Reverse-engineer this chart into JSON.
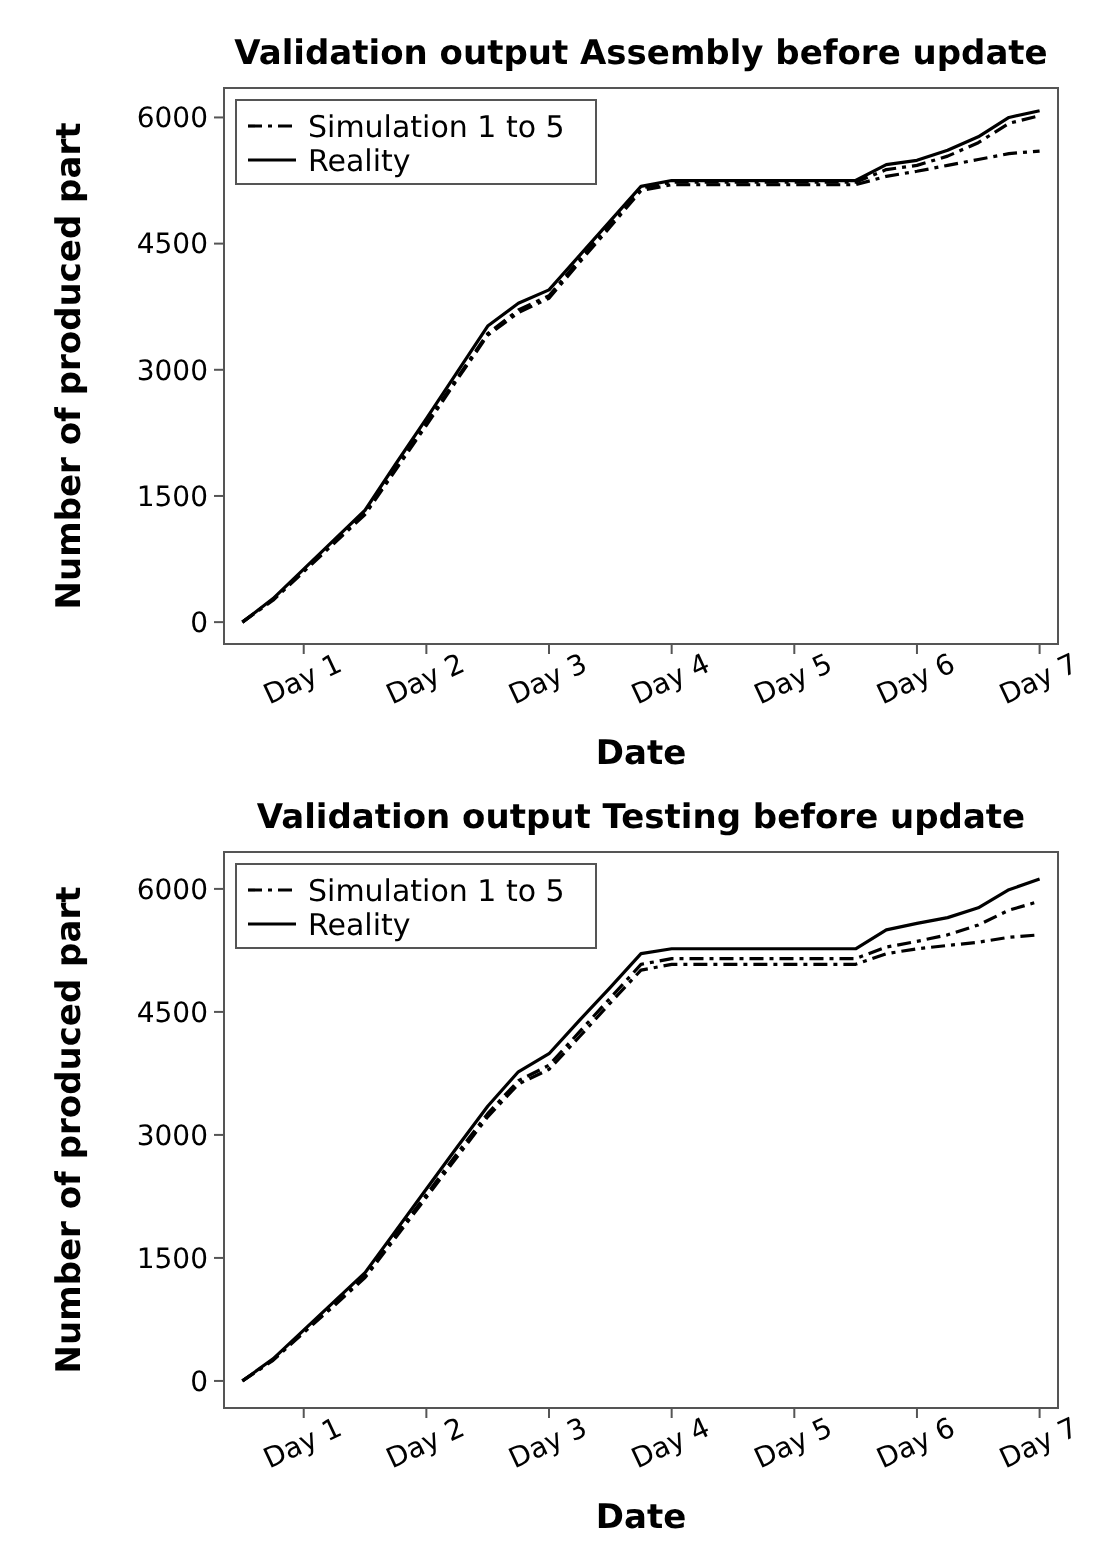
{
  "chart_data": [
    {
      "type": "line",
      "title": "Validation output Assembly before update",
      "xlabel": "Date",
      "ylabel": "Number of produced part",
      "categories": [
        null,
        null,
        "Day 1",
        null,
        null,
        null,
        "Day 2",
        null,
        null,
        null,
        "Day 3",
        null,
        null,
        null,
        "Day 4",
        null,
        null,
        null,
        "Day 5",
        null,
        null,
        null,
        "Day 6",
        null,
        null,
        null,
        "Day 7"
      ],
      "ylim": [
        -260,
        6350
      ],
      "yticks": [
        0,
        1500,
        3000,
        4500,
        6000
      ],
      "legend": "top left",
      "series": [
        {
          "name": "Simulation 1 to 5",
          "color": "#000000",
          "line_style": "dashdot",
          "values": [
            0,
            270,
            610,
            960,
            1300,
            1830,
            2370,
            2900,
            3430,
            3710,
            3880,
            4310,
            4730,
            5160,
            5230,
            5230,
            5230,
            5230,
            5230,
            5230,
            5230,
            5380,
            5430,
            5540,
            5700,
            5930,
            6020
          ]
        },
        {
          "color": "#000000",
          "line_style": "dashdot",
          "values": [
            0,
            260,
            600,
            940,
            1280,
            1810,
            2340,
            2880,
            3410,
            3680,
            3850,
            4280,
            4700,
            5130,
            5200,
            5200,
            5200,
            5200,
            5200,
            5200,
            5200,
            5300,
            5360,
            5430,
            5500,
            5570,
            5600
          ]
        },
        {
          "name": "Reality",
          "color": "#000000",
          "line_style": "solid",
          "values": [
            0,
            280,
            630,
            980,
            1330,
            1880,
            2420,
            2970,
            3520,
            3790,
            3950,
            4360,
            4770,
            5180,
            5250,
            5250,
            5250,
            5250,
            5250,
            5250,
            5250,
            5440,
            5490,
            5610,
            5770,
            6000,
            6080
          ]
        }
      ]
    },
    {
      "type": "line",
      "title": "Validation output Testing before update",
      "xlabel": "Date",
      "ylabel": "Number of produced part",
      "categories": [
        null,
        null,
        "Day 1",
        null,
        null,
        null,
        "Day 2",
        null,
        null,
        null,
        "Day 3",
        null,
        null,
        null,
        "Day 4",
        null,
        null,
        null,
        "Day 5",
        null,
        null,
        null,
        "Day 6",
        null,
        null,
        null,
        "Day 7"
      ],
      "ylim": [
        -330,
        6450
      ],
      "yticks": [
        0,
        1500,
        3000,
        4500,
        6000
      ],
      "legend": "top left",
      "series": [
        {
          "name": "Simulation 1 to 5",
          "color": "#000000",
          "line_style": "dashdot",
          "values": [
            0,
            260,
            600,
            940,
            1280,
            1780,
            2270,
            2770,
            3260,
            3660,
            3850,
            4260,
            4670,
            5080,
            5150,
            5150,
            5150,
            5150,
            5150,
            5150,
            5150,
            5290,
            5360,
            5440,
            5560,
            5740,
            5850
          ]
        },
        {
          "color": "#000000",
          "line_style": "dashdot",
          "values": [
            0,
            250,
            590,
            920,
            1260,
            1750,
            2240,
            2730,
            3220,
            3620,
            3800,
            4200,
            4610,
            5010,
            5080,
            5080,
            5080,
            5080,
            5080,
            5080,
            5080,
            5210,
            5270,
            5310,
            5350,
            5410,
            5440
          ]
        },
        {
          "name": "Reality",
          "color": "#000000",
          "line_style": "solid",
          "values": [
            0,
            270,
            620,
            970,
            1320,
            1830,
            2340,
            2850,
            3350,
            3770,
            3990,
            4400,
            4800,
            5210,
            5270,
            5270,
            5270,
            5270,
            5270,
            5270,
            5270,
            5500,
            5580,
            5650,
            5770,
            5990,
            6120
          ]
        }
      ]
    }
  ]
}
